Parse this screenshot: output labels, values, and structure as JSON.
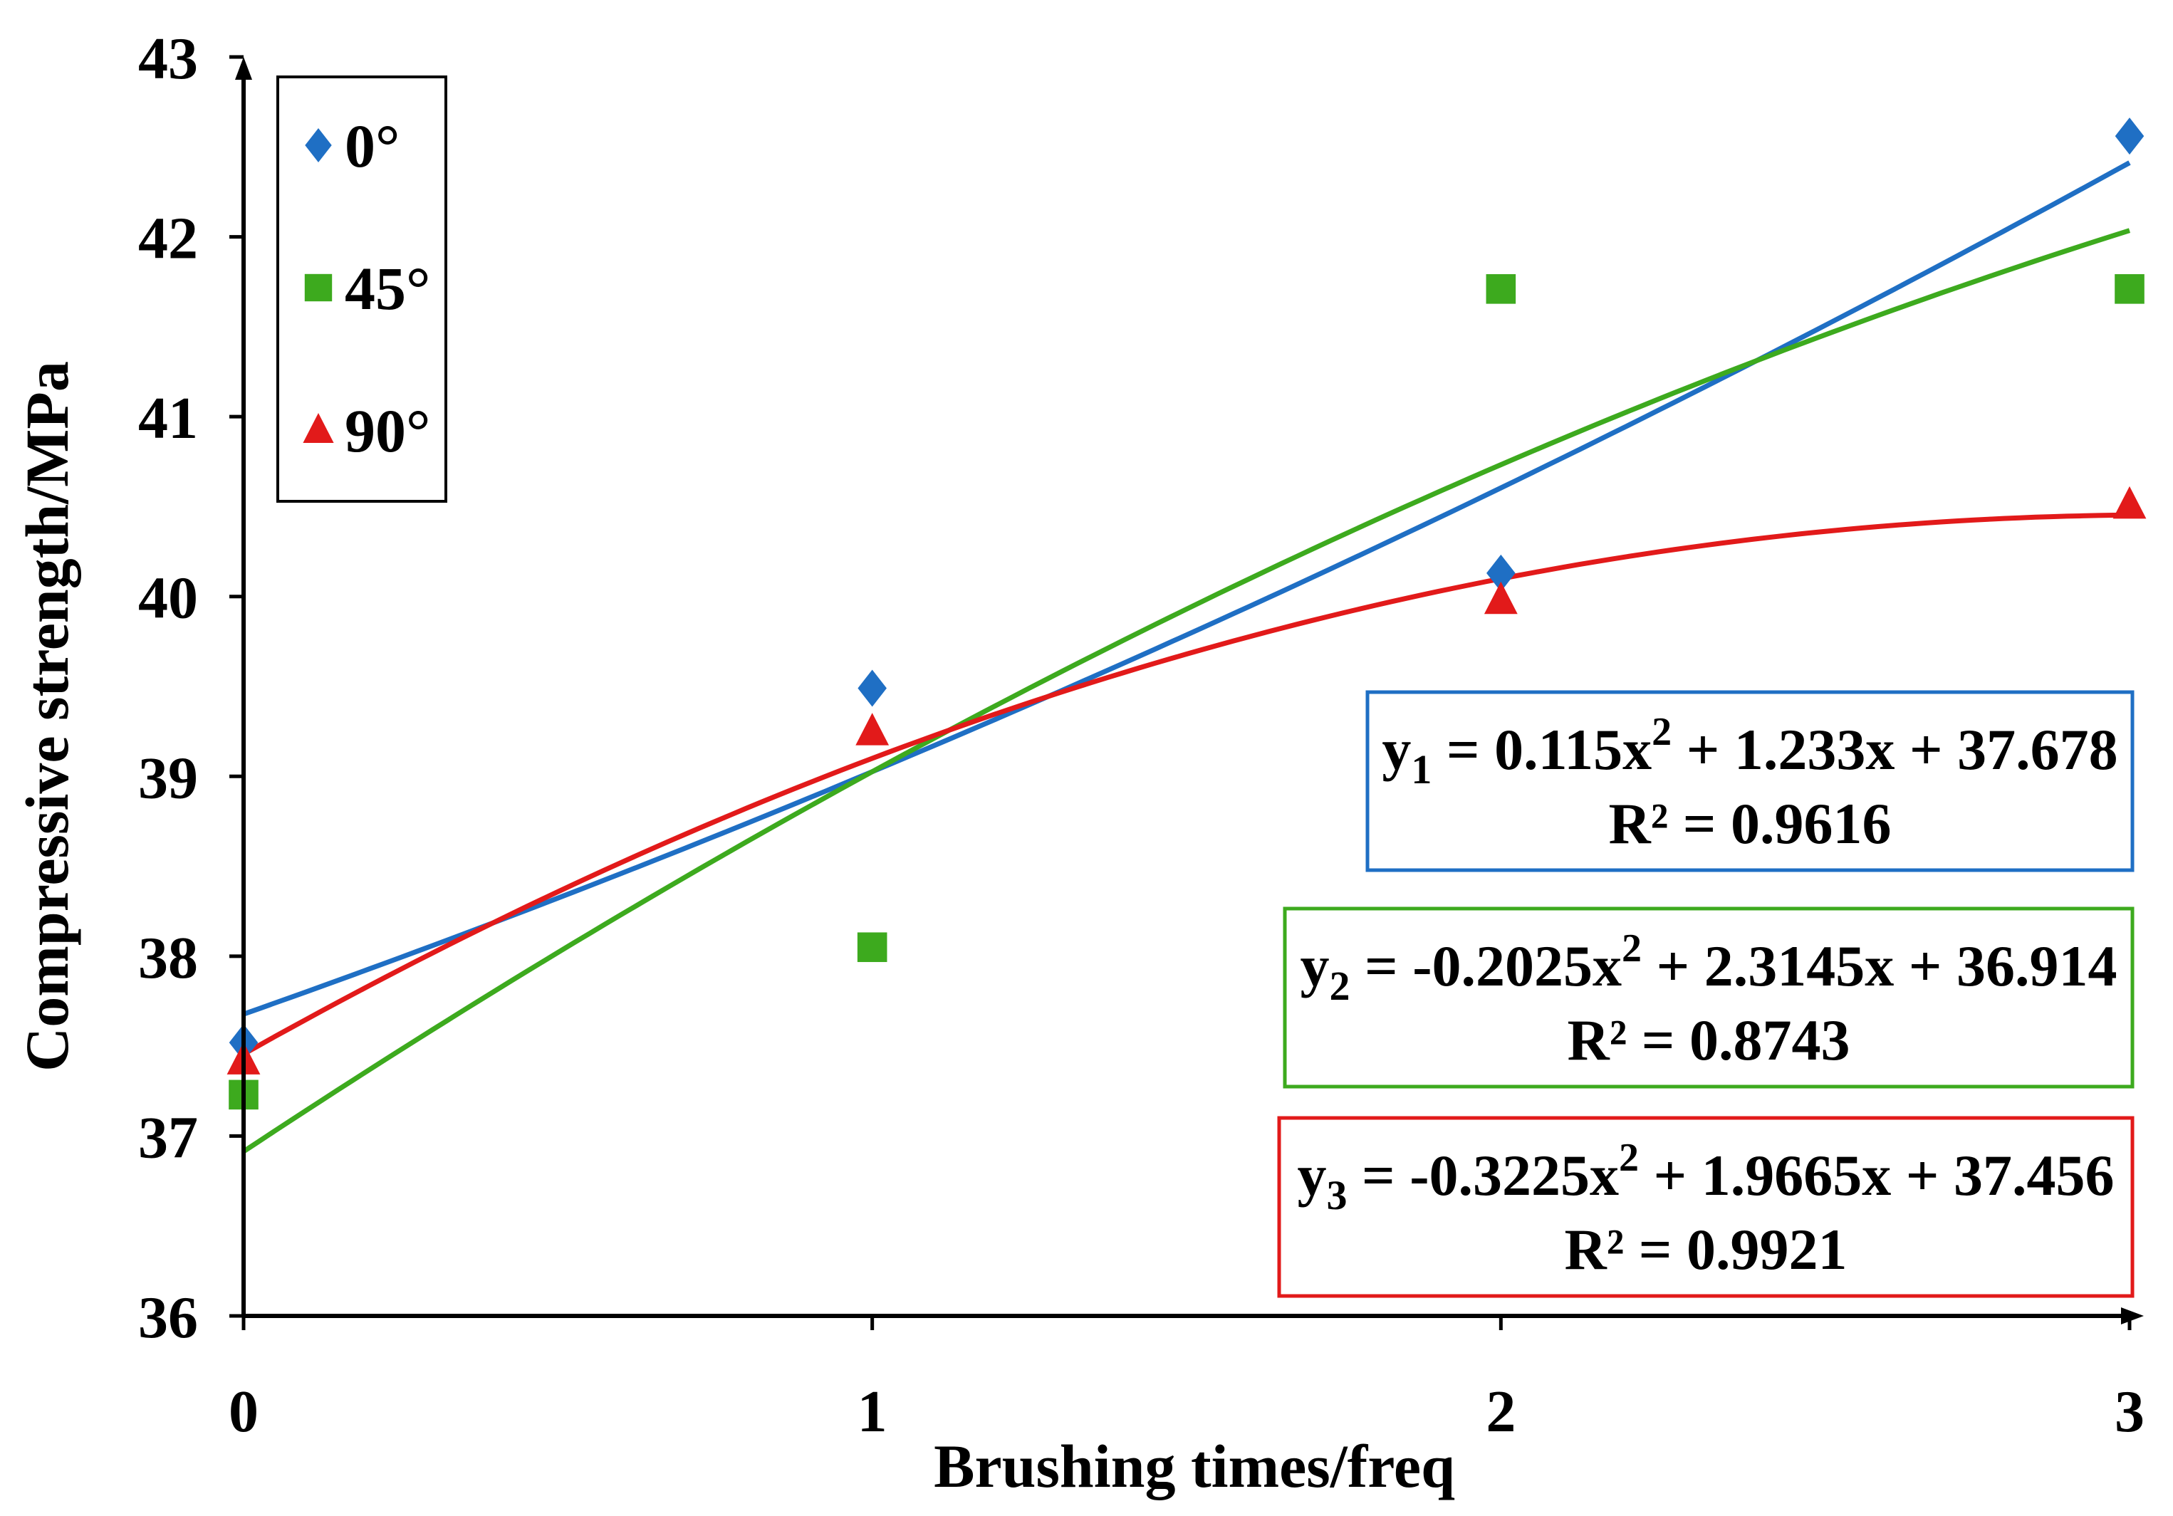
{
  "chart_data": {
    "type": "scatter",
    "title": "",
    "xlabel": "Brushing times/freq",
    "ylabel": "Compressive strength/MPa",
    "xlim": [
      0,
      3
    ],
    "ylim": [
      36,
      43
    ],
    "x_ticks": [
      "0",
      "1",
      "2",
      "3"
    ],
    "y_ticks": [
      "36",
      "37",
      "38",
      "39",
      "40",
      "41",
      "42",
      "43"
    ],
    "grid": false,
    "legend_position": "top-left",
    "series": [
      {
        "name": "0°",
        "marker": "diamond",
        "color": "#1f6fc4",
        "x": [
          0,
          1,
          2,
          3
        ],
        "y": [
          37.52,
          39.49,
          40.13,
          42.56
        ],
        "fit": {
          "coefficients": [
            0.115,
            1.233,
            37.678
          ],
          "equation_prefix": "y",
          "equation_subscript": "1",
          "equation_mid": " = 0.115x",
          "equation_tail": " + 1.233x + 37.678",
          "r2_text": "R² = 0.9616"
        }
      },
      {
        "name": "45°",
        "marker": "square",
        "color": "#3daa1e",
        "x": [
          0,
          1,
          2,
          3
        ],
        "y": [
          37.23,
          38.05,
          41.71,
          41.71
        ],
        "fit": {
          "coefficients": [
            -0.2025,
            2.3145,
            36.914
          ],
          "equation_prefix": "y",
          "equation_subscript": "2",
          "equation_mid": " = -0.2025x",
          "equation_tail": " + 2.3145x + 36.914",
          "r2_text": "R² = 0.8743"
        }
      },
      {
        "name": "90°",
        "marker": "triangle",
        "color": "#e21a1a",
        "x": [
          0,
          1,
          2,
          3
        ],
        "y": [
          37.42,
          39.25,
          39.98,
          40.51
        ],
        "fit": {
          "coefficients": [
            -0.3225,
            1.9665,
            37.456
          ],
          "equation_prefix": "y",
          "equation_subscript": "3",
          "equation_mid": " = -0.3225x",
          "equation_tail": " + 1.9665x + 37.456",
          "r2_text": "R² = 0.9921"
        }
      }
    ],
    "superscript": "2"
  }
}
